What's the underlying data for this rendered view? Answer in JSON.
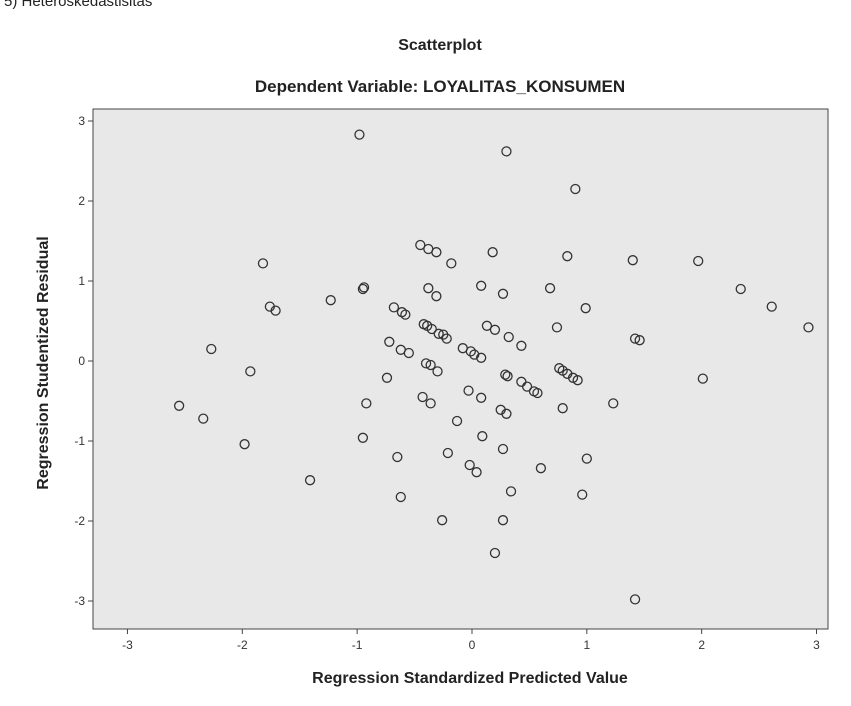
{
  "header_fragment": "5) Heteroskedastisitas",
  "chart_data": {
    "type": "scatter",
    "title": "Scatterplot",
    "subtitle": "Dependent Variable: LOYALITAS_KONSUMEN",
    "xlabel": "Regression Standardized Predicted Value",
    "ylabel": "Regression Studentized Residual",
    "xlim": [
      -3.3,
      3.1
    ],
    "ylim": [
      -3.35,
      3.15
    ],
    "xticks": [
      -3,
      -2,
      -1,
      0,
      1,
      2,
      3
    ],
    "yticks": [
      -3,
      -2,
      -1,
      0,
      1,
      2,
      3
    ],
    "grid": false,
    "colors": {
      "plot_background": "#e8e8e8",
      "marker_stroke": "#333333",
      "axis": "#444444"
    },
    "marker": "hollow-circle",
    "points": [
      {
        "x": -0.98,
        "y": 2.83
      },
      {
        "x": 0.3,
        "y": 2.62
      },
      {
        "x": 0.9,
        "y": 2.15
      },
      {
        "x": -1.82,
        "y": 1.22
      },
      {
        "x": -0.45,
        "y": 1.45
      },
      {
        "x": -0.38,
        "y": 1.4
      },
      {
        "x": -0.31,
        "y": 1.36
      },
      {
        "x": -0.18,
        "y": 1.22
      },
      {
        "x": 0.18,
        "y": 1.36
      },
      {
        "x": 0.83,
        "y": 1.31
      },
      {
        "x": 1.4,
        "y": 1.26
      },
      {
        "x": 1.97,
        "y": 1.25
      },
      {
        "x": -0.95,
        "y": 0.9
      },
      {
        "x": -0.94,
        "y": 0.92
      },
      {
        "x": -1.23,
        "y": 0.76
      },
      {
        "x": -1.76,
        "y": 0.68
      },
      {
        "x": -1.71,
        "y": 0.63
      },
      {
        "x": -0.38,
        "y": 0.91
      },
      {
        "x": -0.31,
        "y": 0.81
      },
      {
        "x": 0.08,
        "y": 0.94
      },
      {
        "x": 0.27,
        "y": 0.84
      },
      {
        "x": 0.68,
        "y": 0.91
      },
      {
        "x": 2.34,
        "y": 0.9
      },
      {
        "x": 2.61,
        "y": 0.68
      },
      {
        "x": 0.99,
        "y": 0.66
      },
      {
        "x": -0.68,
        "y": 0.67
      },
      {
        "x": -0.61,
        "y": 0.61
      },
      {
        "x": -0.58,
        "y": 0.58
      },
      {
        "x": -0.42,
        "y": 0.46
      },
      {
        "x": -0.39,
        "y": 0.44
      },
      {
        "x": -0.35,
        "y": 0.4
      },
      {
        "x": -0.29,
        "y": 0.34
      },
      {
        "x": -0.25,
        "y": 0.33
      },
      {
        "x": 0.13,
        "y": 0.44
      },
      {
        "x": 0.2,
        "y": 0.39
      },
      {
        "x": 0.32,
        "y": 0.3
      },
      {
        "x": 0.43,
        "y": 0.19
      },
      {
        "x": 0.74,
        "y": 0.42
      },
      {
        "x": 2.93,
        "y": 0.42
      },
      {
        "x": 1.42,
        "y": 0.28
      },
      {
        "x": 1.46,
        "y": 0.26
      },
      {
        "x": -2.27,
        "y": 0.15
      },
      {
        "x": -0.72,
        "y": 0.24
      },
      {
        "x": -0.62,
        "y": 0.14
      },
      {
        "x": -0.55,
        "y": 0.1
      },
      {
        "x": -0.22,
        "y": 0.28
      },
      {
        "x": -0.08,
        "y": 0.16
      },
      {
        "x": -0.01,
        "y": 0.12
      },
      {
        "x": 0.02,
        "y": 0.08
      },
      {
        "x": 0.08,
        "y": 0.04
      },
      {
        "x": -1.93,
        "y": -0.13
      },
      {
        "x": -0.74,
        "y": -0.21
      },
      {
        "x": -0.4,
        "y": -0.03
      },
      {
        "x": -0.36,
        "y": -0.05
      },
      {
        "x": -0.3,
        "y": -0.13
      },
      {
        "x": 0.29,
        "y": -0.17
      },
      {
        "x": 0.31,
        "y": -0.19
      },
      {
        "x": 0.43,
        "y": -0.26
      },
      {
        "x": 0.48,
        "y": -0.32
      },
      {
        "x": 0.54,
        "y": -0.38
      },
      {
        "x": 0.57,
        "y": -0.4
      },
      {
        "x": 0.76,
        "y": -0.09
      },
      {
        "x": 0.79,
        "y": -0.12
      },
      {
        "x": 0.83,
        "y": -0.16
      },
      {
        "x": 0.88,
        "y": -0.21
      },
      {
        "x": 0.92,
        "y": -0.24
      },
      {
        "x": 2.01,
        "y": -0.22
      },
      {
        "x": -2.55,
        "y": -0.56
      },
      {
        "x": -2.34,
        "y": -0.72
      },
      {
        "x": -0.92,
        "y": -0.53
      },
      {
        "x": -0.43,
        "y": -0.45
      },
      {
        "x": -0.36,
        "y": -0.53
      },
      {
        "x": -0.03,
        "y": -0.37
      },
      {
        "x": 0.08,
        "y": -0.46
      },
      {
        "x": 0.25,
        "y": -0.61
      },
      {
        "x": 0.3,
        "y": -0.66
      },
      {
        "x": 0.79,
        "y": -0.59
      },
      {
        "x": 1.23,
        "y": -0.53
      },
      {
        "x": -1.98,
        "y": -1.04
      },
      {
        "x": -0.95,
        "y": -0.96
      },
      {
        "x": -0.13,
        "y": -0.75
      },
      {
        "x": 0.09,
        "y": -0.94
      },
      {
        "x": 0.27,
        "y": -1.1
      },
      {
        "x": -0.65,
        "y": -1.2
      },
      {
        "x": -0.21,
        "y": -1.15
      },
      {
        "x": -0.02,
        "y": -1.3
      },
      {
        "x": 0.04,
        "y": -1.39
      },
      {
        "x": 0.6,
        "y": -1.34
      },
      {
        "x": 1.0,
        "y": -1.22
      },
      {
        "x": -1.41,
        "y": -1.49
      },
      {
        "x": -0.62,
        "y": -1.7
      },
      {
        "x": 0.34,
        "y": -1.63
      },
      {
        "x": 0.96,
        "y": -1.67
      },
      {
        "x": -0.26,
        "y": -1.99
      },
      {
        "x": 0.27,
        "y": -1.99
      },
      {
        "x": 0.2,
        "y": -2.4
      },
      {
        "x": 1.42,
        "y": -2.98
      }
    ]
  }
}
